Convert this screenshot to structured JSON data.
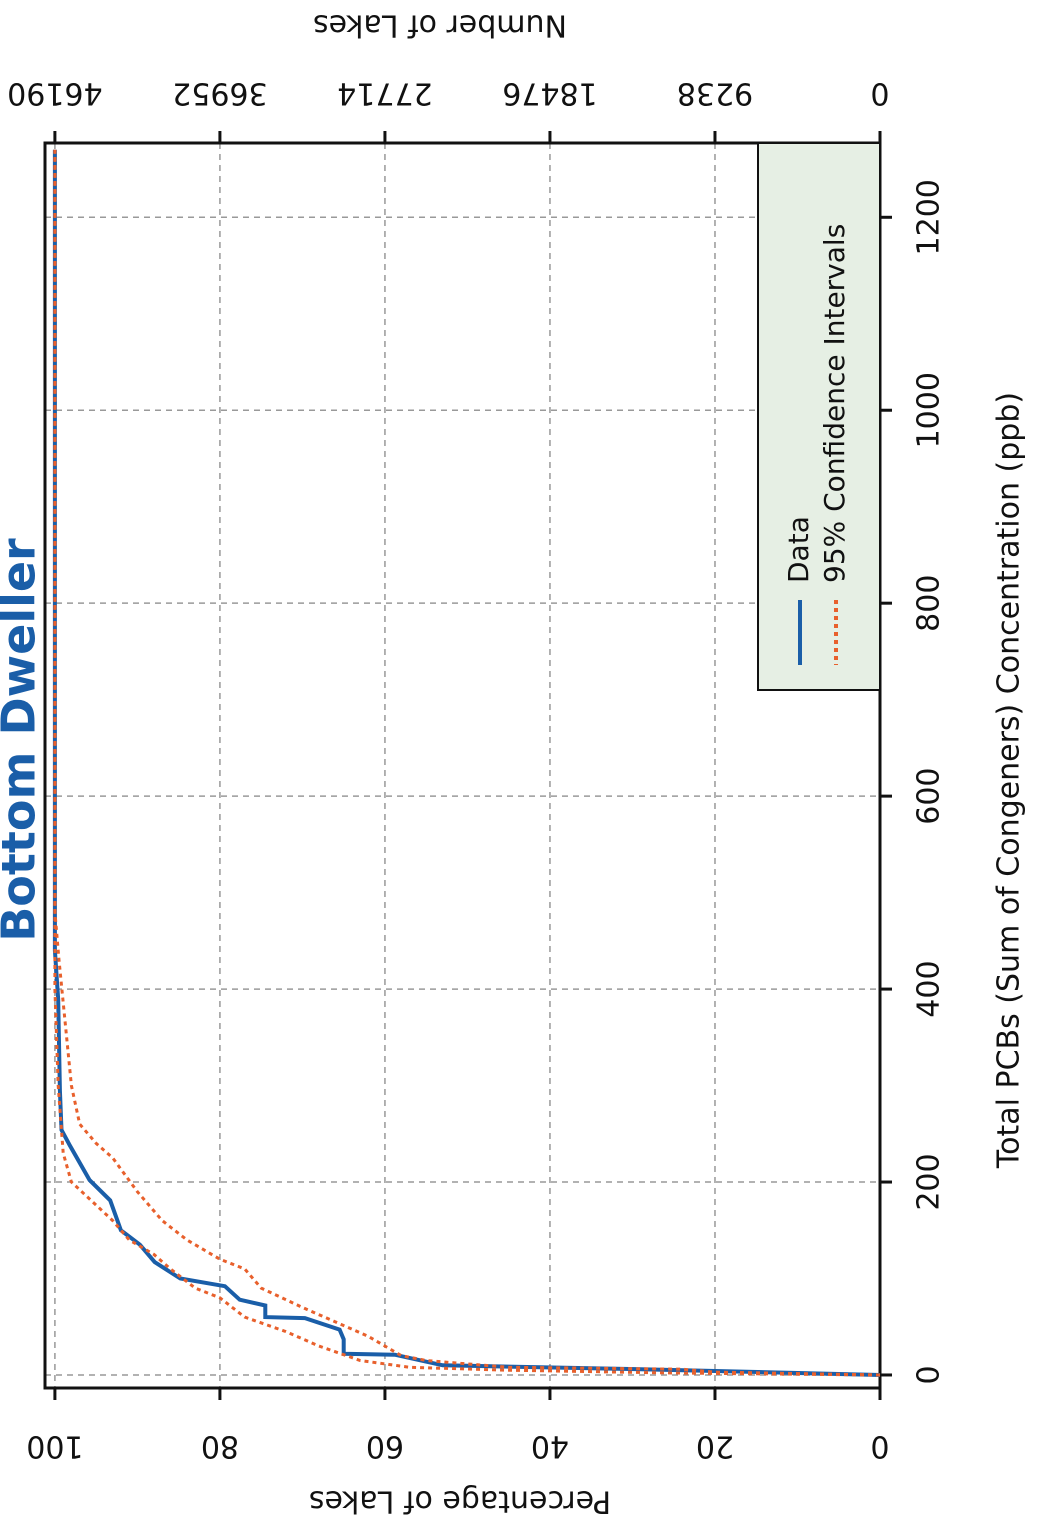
{
  "chart_data": {
    "type": "line",
    "title": "Bottom Dweller",
    "xlabel": "Total PCBs (Sum of Congeners) Concentration (ppb)",
    "ylabel": "Percentage of Lakes",
    "y2label": "Number of Lakes",
    "xlim": [
      -13.5,
      1277
    ],
    "xticks": [
      0,
      200,
      400,
      600,
      800,
      1000,
      1200
    ],
    "ylim": [
      0,
      101.2
    ],
    "yticks": [
      0,
      20,
      40,
      60,
      80,
      100
    ],
    "y2lim": [
      0,
      46744
    ],
    "y2ticks": [
      0,
      9238,
      18476,
      27714,
      36952,
      46190
    ],
    "grid": true,
    "legend": "top-right",
    "series": [
      {
        "name": "Data",
        "color": "#1a5ea8",
        "style": "solid",
        "x": [
          0,
          1,
          6,
          10,
          21,
          22,
          37,
          47,
          59,
          60,
          72,
          78,
          92,
          100,
          117,
          135,
          150,
          181,
          202,
          238,
          254,
          295,
          389,
          440,
          1270
        ],
        "values": [
          0,
          5,
          29,
          53,
          58.8,
          65,
          65,
          65.5,
          69.7,
          74.5,
          74.5,
          77.6,
          79.4,
          84.8,
          87.9,
          89.7,
          92,
          93.3,
          95.8,
          98.2,
          99.2,
          99.4,
          99.6,
          100,
          100
        ]
      },
      {
        "name": "95% Confidence Intervals",
        "color": "#e8602c",
        "style": "dotted",
        "x": [
          0,
          3,
          6,
          8,
          15,
          20,
          40,
          55,
          70,
          90,
          110,
          120,
          140,
          160,
          190,
          225,
          240,
          260,
          300,
          430,
          480,
          1270
        ],
        "values": [
          0,
          20,
          24,
          45,
          55,
          58,
          62,
          66,
          70,
          75,
          77,
          80,
          84,
          87,
          90,
          93,
          95,
          97,
          98,
          99.5,
          100,
          100
        ]
      },
      {
        "color": "#e8602c",
        "style": "dotted",
        "x": [
          0,
          2,
          5,
          8,
          15,
          30,
          45,
          60,
          80,
          90,
          110,
          125,
          140,
          160,
          200,
          230,
          300,
          400,
          1270
        ],
        "values": [
          0,
          25,
          45,
          57,
          63,
          68,
          72,
          77,
          80,
          83,
          86,
          88,
          91,
          93,
          98,
          99,
          99.6,
          100,
          100
        ]
      }
    ]
  }
}
